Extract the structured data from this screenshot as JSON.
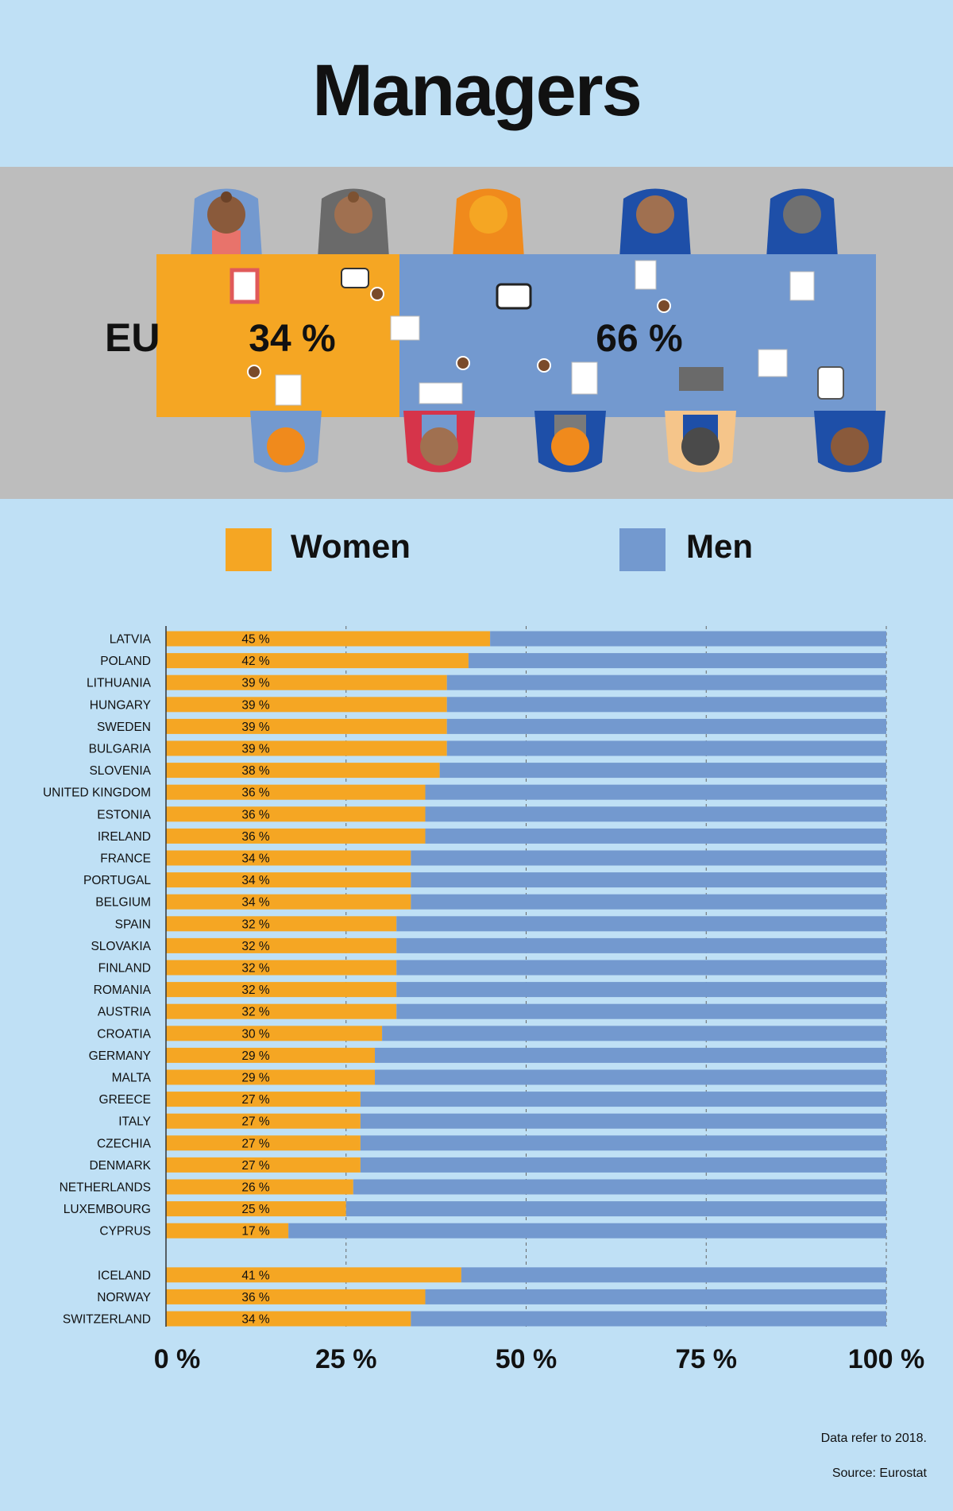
{
  "title": "Managers",
  "colors": {
    "women": "#f5a623",
    "men": "#7399cf",
    "background": "#bfe0f5",
    "band": "#bdbdbd"
  },
  "eu": {
    "label": "EU",
    "women_label": "34 %",
    "men_label": "66 %",
    "women_value": 34,
    "men_value": 66
  },
  "legend": {
    "women": "Women",
    "men": "Men"
  },
  "footnote": {
    "note": "Data refer to 2018.",
    "source": "Source: Eurostat"
  },
  "chart_data": {
    "type": "bar",
    "orientation": "horizontal",
    "stacked": true,
    "categories": [
      "LATVIA",
      "POLAND",
      "LITHUANIA",
      "HUNGARY",
      "SWEDEN",
      "BULGARIA",
      "SLOVENIA",
      "UNITED KINGDOM",
      "ESTONIA",
      "IRELAND",
      "FRANCE",
      "PORTUGAL",
      "BELGIUM",
      "SPAIN",
      "SLOVAKIA",
      "FINLAND",
      "ROMANIA",
      "AUSTRIA",
      "CROATIA",
      "GERMANY",
      "MALTA",
      "GREECE",
      "ITALY",
      "CZECHIA",
      "DENMARK",
      "NETHERLANDS",
      "LUXEMBOURG",
      "CYPRUS",
      "ICELAND",
      "NORWAY",
      "SWITZERLAND"
    ],
    "groups": [
      28,
      3
    ],
    "series": [
      {
        "name": "Women",
        "values": [
          45,
          42,
          39,
          39,
          39,
          39,
          38,
          36,
          36,
          36,
          34,
          34,
          34,
          32,
          32,
          32,
          32,
          32,
          30,
          29,
          29,
          27,
          27,
          27,
          27,
          26,
          25,
          17,
          41,
          36,
          34
        ]
      },
      {
        "name": "Men",
        "values": [
          55,
          58,
          61,
          61,
          61,
          61,
          62,
          64,
          64,
          64,
          66,
          66,
          66,
          68,
          68,
          68,
          68,
          68,
          70,
          71,
          71,
          73,
          73,
          73,
          73,
          74,
          75,
          83,
          59,
          64,
          66
        ]
      }
    ],
    "data_labels": [
      "45 %",
      "42 %",
      "39 %",
      "39 %",
      "39 %",
      "39 %",
      "38 %",
      "36 %",
      "36 %",
      "36 %",
      "34 %",
      "34 %",
      "34 %",
      "32 %",
      "32 %",
      "32 %",
      "32 %",
      "32 %",
      "30 %",
      "29 %",
      "29 %",
      "27 %",
      "27 %",
      "27 %",
      "27 %",
      "26 %",
      "25 %",
      "17 %",
      "41 %",
      "36 %",
      "34 %"
    ],
    "xticks": [
      0,
      25,
      50,
      75,
      100
    ],
    "xtick_labels": [
      "0 %",
      "25 %",
      "50 %",
      "75 %",
      "100 %"
    ],
    "xlim": [
      0,
      100
    ],
    "grid": "vertical dashed"
  }
}
